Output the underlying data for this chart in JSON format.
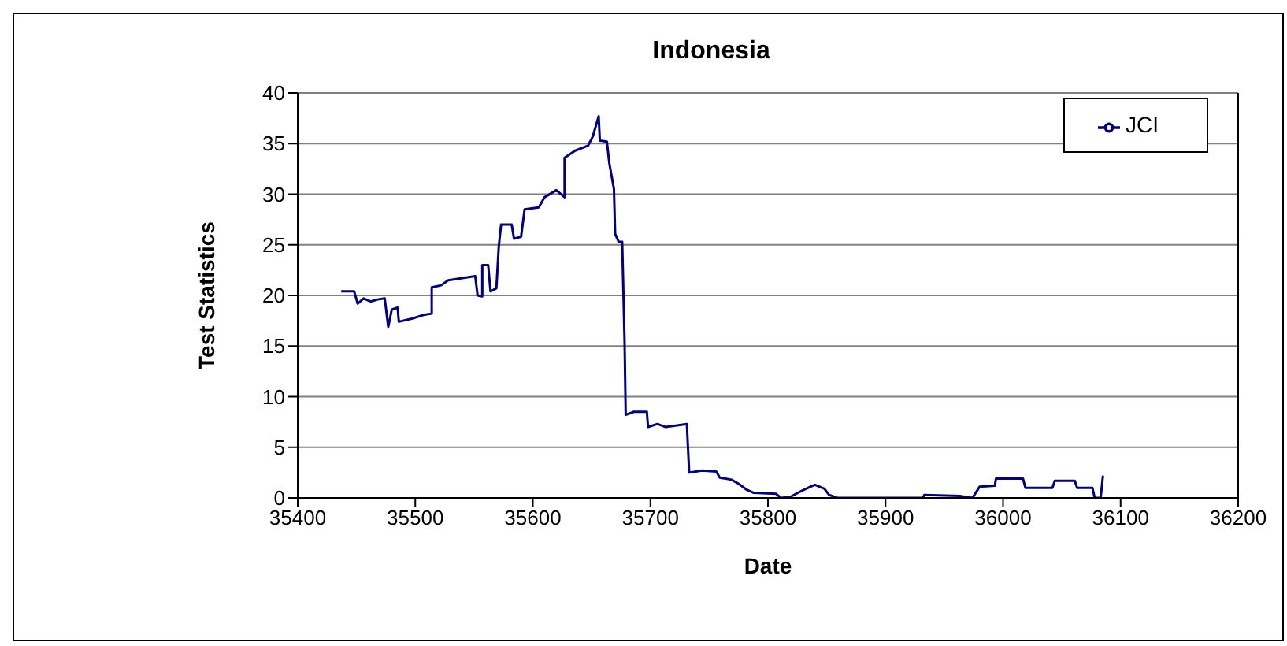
{
  "chart_data": {
    "type": "line",
    "title": "Indonesia",
    "xlabel": "Date",
    "ylabel": "Test Statistics",
    "xlim": [
      35400,
      36200
    ],
    "xticks": [
      35400,
      35500,
      35600,
      35700,
      35800,
      35900,
      36000,
      36100,
      36200
    ],
    "ylim": [
      0,
      40
    ],
    "yticks": [
      0,
      5,
      10,
      15,
      20,
      25,
      30,
      35,
      40
    ],
    "grid": "y",
    "legend": "top right",
    "marker": "none",
    "line_style": "solid",
    "series": [
      {
        "name": "JCI",
        "color": "#000080",
        "x": [
          35437,
          35448,
          35451,
          35456,
          35462,
          35468,
          35474,
          35477,
          35480,
          35485,
          35486,
          35497,
          35508,
          35514,
          35514,
          35522,
          35528,
          35539,
          35551,
          35553,
          35557,
          35557,
          35562,
          35564,
          35569,
          35571,
          35573,
          35582,
          35584,
          35590,
          35593,
          35605,
          35610,
          35620,
          35627,
          35627,
          35636,
          35647,
          35651,
          35656,
          35657,
          35663,
          35665,
          35669,
          35670,
          35671,
          35673,
          35676,
          35678,
          35679,
          35686,
          35697,
          35698,
          35706,
          35713,
          35731,
          35733,
          35744,
          35756,
          35759,
          35769,
          35775,
          35782,
          35788,
          35807,
          35811,
          35819,
          35827,
          35836,
          35840,
          35848,
          35852,
          35859,
          35932,
          35933,
          35963,
          35974,
          35980,
          35993,
          35994,
          36017,
          36019,
          36042,
          36044,
          36061,
          36063,
          36076,
          36078,
          36083,
          36085
        ],
        "values": [
          20.4,
          20.4,
          19.2,
          19.7,
          19.4,
          19.6,
          19.7,
          16.9,
          18.6,
          18.8,
          17.4,
          17.7,
          18.1,
          18.2,
          20.8,
          21.0,
          21.5,
          21.7,
          21.9,
          20.0,
          19.9,
          23.0,
          23.0,
          20.4,
          20.7,
          24.8,
          27.0,
          27.0,
          25.6,
          25.8,
          28.5,
          28.7,
          29.7,
          30.4,
          29.7,
          33.6,
          34.3,
          34.8,
          35.7,
          37.7,
          35.3,
          35.2,
          33.1,
          30.5,
          26.1,
          25.8,
          25.3,
          25.3,
          15.6,
          8.2,
          8.5,
          8.5,
          7.0,
          7.3,
          7.0,
          7.3,
          2.5,
          2.7,
          2.6,
          2.0,
          1.8,
          1.4,
          0.8,
          0.5,
          0.4,
          0,
          0.1,
          0.6,
          1.1,
          1.3,
          0.9,
          0.3,
          0,
          0,
          0.3,
          0.2,
          0,
          1.1,
          1.2,
          1.9,
          1.9,
          1.0,
          1.0,
          1.7,
          1.7,
          1.0,
          1.0,
          0,
          0,
          2.2
        ]
      }
    ]
  }
}
